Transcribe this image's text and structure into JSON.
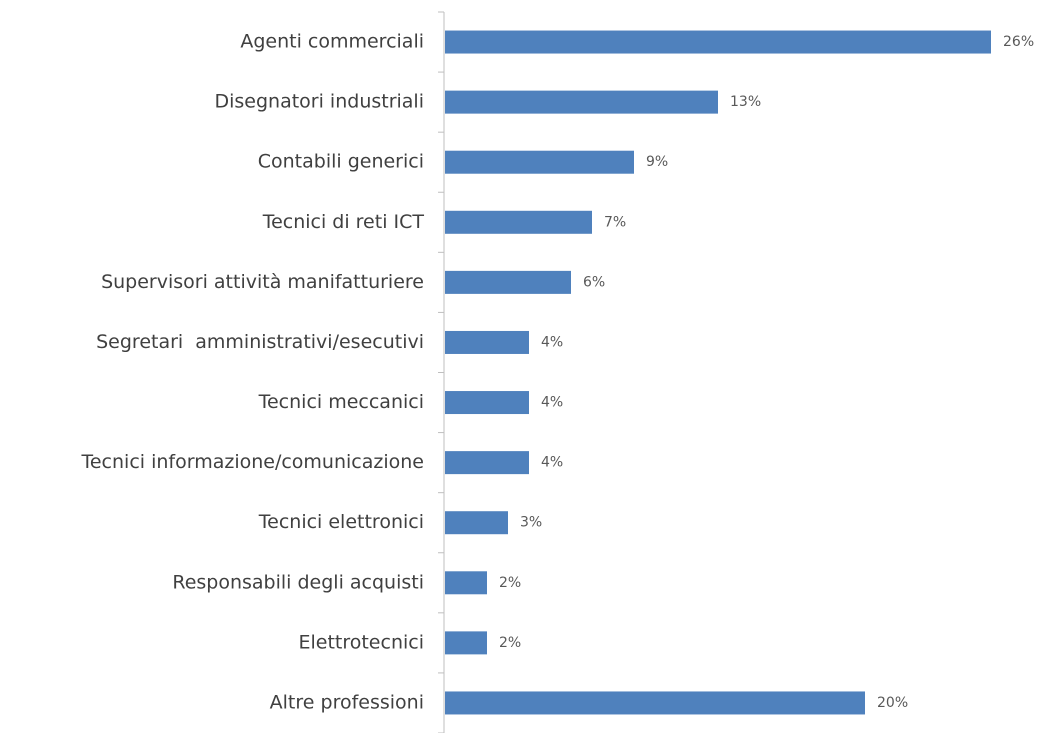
{
  "chart_data": {
    "type": "bar",
    "orientation": "horizontal",
    "categories": [
      "Agenti commerciali",
      "Disegnatori industriali",
      "Contabili generici",
      "Tecnici di reti ICT",
      "Supervisori attività manifatturiere",
      "Segretari  amministrativi/esecutivi",
      "Tecnici meccanici",
      "Tecnici informazione/comunicazione",
      "Tecnici elettronici",
      "Responsabili degli acquisti",
      "Elettrotecnici",
      "Altre professioni"
    ],
    "values": [
      26,
      13,
      9,
      7,
      6,
      4,
      4,
      4,
      3,
      2,
      2,
      20
    ],
    "value_labels": [
      "26%",
      "13%",
      "9%",
      "7%",
      "6%",
      "4%",
      "4%",
      "4%",
      "3%",
      "2%",
      "2%",
      "20%"
    ],
    "unit": "%",
    "xlim": [
      0,
      30
    ],
    "title": "",
    "xlabel": "",
    "ylabel": "",
    "grid": false,
    "legend": "none",
    "bar_color": "#4F81BD",
    "axis_color": "#BFBFBF"
  }
}
